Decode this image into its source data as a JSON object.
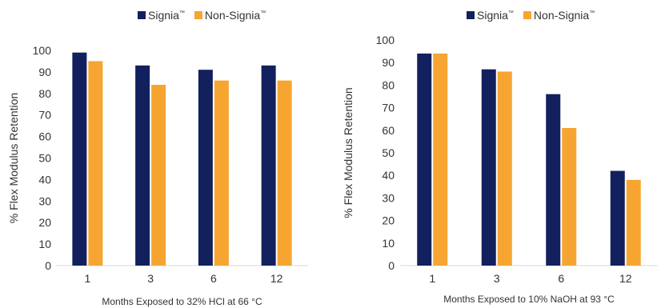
{
  "colors": {
    "signia": "#12205e",
    "non_signia": "#f6a531"
  },
  "chart_data": [
    {
      "type": "bar",
      "title": "",
      "xlabel": "Months Exposed to 32% HCl at 66 °C",
      "ylabel": "% Flex Modulus Retention",
      "ylim": [
        0,
        100
      ],
      "yticks": [
        0,
        10,
        20,
        30,
        40,
        50,
        60,
        70,
        80,
        90,
        100
      ],
      "categories": [
        "1",
        "3",
        "6",
        "12"
      ],
      "legend_position": "top",
      "grid": false,
      "series": [
        {
          "name": "Signia",
          "sup": "™",
          "values": [
            99,
            93,
            91,
            93
          ]
        },
        {
          "name": "Non-Signia",
          "sup": "™",
          "values": [
            95,
            84,
            86,
            86
          ]
        }
      ]
    },
    {
      "type": "bar",
      "title": "",
      "xlabel": "Months Exposed to 10% NaOH at 93 °C",
      "ylabel": "% Flex Modulus Retention",
      "ylim": [
        0,
        100
      ],
      "yticks": [
        0,
        10,
        20,
        30,
        40,
        50,
        60,
        70,
        80,
        90,
        100
      ],
      "categories": [
        "1",
        "3",
        "6",
        "12"
      ],
      "legend_position": "top-right",
      "grid": false,
      "series": [
        {
          "name": "Signia",
          "sup": "™",
          "values": [
            94,
            87,
            76,
            42
          ]
        },
        {
          "name": "Non-Signia",
          "sup": "™",
          "values": [
            94,
            86,
            61,
            38
          ]
        }
      ]
    }
  ]
}
